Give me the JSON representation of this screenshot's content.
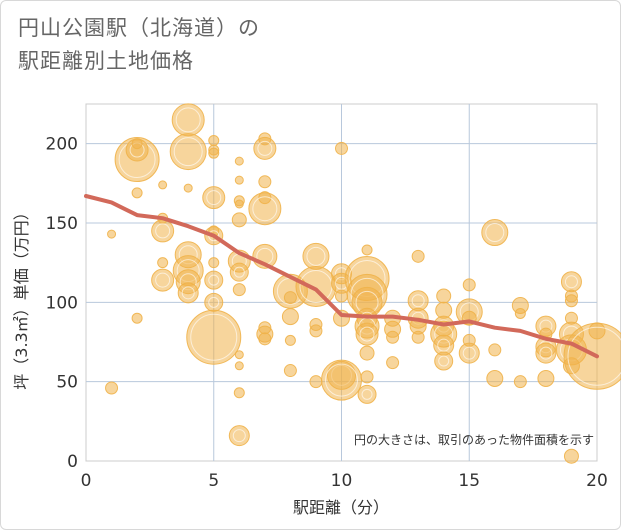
{
  "title_lines": [
    "円山公園駅（北海道）の",
    "駅距離別土地価格"
  ],
  "chart_data": {
    "type": "scatter",
    "title": "円山公園駅（北海道）の駅距離別土地価格",
    "xlabel": "駅距離（分）",
    "ylabel": "坪（3.3㎡）単価（万円）",
    "xlim": [
      0,
      20
    ],
    "ylim": [
      0,
      225
    ],
    "xticks": [
      0,
      5,
      10,
      15,
      20
    ],
    "yticks": [
      0,
      50,
      100,
      150,
      200
    ],
    "grid": true,
    "note": "円の大きさは、取引のあった物件面積を示す",
    "colors": {
      "bubble": "#f0b24a",
      "trend": "#d2695a"
    },
    "points": [
      [
        1,
        46,
        6
      ],
      [
        1,
        143,
        4
      ],
      [
        2,
        190,
        22
      ],
      [
        2,
        196,
        11
      ],
      [
        2,
        200,
        5
      ],
      [
        2,
        169,
        5
      ],
      [
        2,
        90,
        5
      ],
      [
        3,
        174,
        4
      ],
      [
        3,
        153,
        5
      ],
      [
        3,
        145,
        11
      ],
      [
        3,
        125,
        5
      ],
      [
        3,
        114,
        11
      ],
      [
        4,
        215,
        16
      ],
      [
        4,
        195,
        18
      ],
      [
        4,
        172,
        4
      ],
      [
        4,
        130,
        13
      ],
      [
        4,
        120,
        15
      ],
      [
        4,
        113,
        12
      ],
      [
        4,
        106,
        10
      ],
      [
        5,
        202,
        5
      ],
      [
        5,
        196,
        5
      ],
      [
        5,
        194,
        5
      ],
      [
        5,
        166,
        11
      ],
      [
        5,
        145,
        5
      ],
      [
        5,
        142,
        9
      ],
      [
        5,
        125,
        5
      ],
      [
        5,
        114,
        9
      ],
      [
        5,
        100,
        9
      ],
      [
        5,
        78,
        27
      ],
      [
        6,
        189,
        4
      ],
      [
        6,
        177,
        4
      ],
      [
        6,
        164,
        5
      ],
      [
        6,
        162,
        4
      ],
      [
        6,
        152,
        7
      ],
      [
        6,
        126,
        11
      ],
      [
        6,
        119,
        9
      ],
      [
        6,
        108,
        6
      ],
      [
        6,
        67,
        4
      ],
      [
        6,
        60,
        4
      ],
      [
        6,
        43,
        5
      ],
      [
        6,
        16,
        10
      ],
      [
        7,
        203,
        6
      ],
      [
        7,
        197,
        11
      ],
      [
        7,
        176,
        6
      ],
      [
        7,
        166,
        6
      ],
      [
        7,
        159,
        16
      ],
      [
        7,
        129,
        12
      ],
      [
        7,
        84,
        6
      ],
      [
        7,
        80,
        8
      ],
      [
        7,
        77,
        6
      ],
      [
        8,
        107,
        17
      ],
      [
        8,
        103,
        6
      ],
      [
        8,
        91,
        8
      ],
      [
        8,
        76,
        5
      ],
      [
        8,
        57,
        6
      ],
      [
        9,
        129,
        13
      ],
      [
        9,
        110,
        20
      ],
      [
        9,
        86,
        6
      ],
      [
        9,
        82,
        6
      ],
      [
        9,
        50,
        6
      ],
      [
        10,
        197,
        6
      ],
      [
        10,
        118,
        10
      ],
      [
        10,
        112,
        10
      ],
      [
        10,
        104,
        6
      ],
      [
        10,
        90,
        8
      ],
      [
        10,
        54,
        14
      ],
      [
        10,
        51,
        20
      ],
      [
        11,
        133,
        5
      ],
      [
        11,
        115,
        22
      ],
      [
        11,
        105,
        20
      ],
      [
        11,
        100,
        15
      ],
      [
        11,
        90,
        10
      ],
      [
        11,
        85,
        12
      ],
      [
        11,
        80,
        11
      ],
      [
        11,
        68,
        7
      ],
      [
        11,
        53,
        6
      ],
      [
        11,
        42,
        9
      ],
      [
        12,
        90,
        8
      ],
      [
        12,
        83,
        8
      ],
      [
        12,
        78,
        6
      ],
      [
        12,
        62,
        6
      ],
      [
        13,
        129,
        6
      ],
      [
        13,
        101,
        10
      ],
      [
        13,
        90,
        10
      ],
      [
        13,
        85,
        8
      ],
      [
        13,
        78,
        6
      ],
      [
        14,
        104,
        7
      ],
      [
        14,
        95,
        8
      ],
      [
        14,
        85,
        10
      ],
      [
        14,
        80,
        13
      ],
      [
        14,
        73,
        10
      ],
      [
        14,
        63,
        9
      ],
      [
        15,
        111,
        6
      ],
      [
        15,
        94,
        13
      ],
      [
        15,
        90,
        7
      ],
      [
        15,
        76,
        6
      ],
      [
        15,
        68,
        10
      ],
      [
        16,
        144,
        13
      ],
      [
        16,
        70,
        6
      ],
      [
        16,
        52,
        8
      ],
      [
        17,
        98,
        8
      ],
      [
        17,
        93,
        5
      ],
      [
        17,
        50,
        6
      ],
      [
        18,
        85,
        10
      ],
      [
        18,
        80,
        6
      ],
      [
        18,
        72,
        10
      ],
      [
        18,
        68,
        10
      ],
      [
        18,
        52,
        8
      ],
      [
        19,
        113,
        10
      ],
      [
        19,
        104,
        6
      ],
      [
        19,
        101,
        6
      ],
      [
        19,
        90,
        6
      ],
      [
        19,
        80,
        12
      ],
      [
        19,
        70,
        15
      ],
      [
        19,
        60,
        8
      ],
      [
        19,
        3,
        7
      ],
      [
        20,
        82,
        8
      ],
      [
        20,
        66,
        33
      ]
    ],
    "trend": [
      [
        0,
        167
      ],
      [
        1,
        163
      ],
      [
        2,
        155
      ],
      [
        3,
        153
      ],
      [
        4,
        148
      ],
      [
        5,
        142
      ],
      [
        6,
        131
      ],
      [
        7,
        124
      ],
      [
        8,
        116
      ],
      [
        9,
        108
      ],
      [
        10,
        92
      ],
      [
        11,
        91
      ],
      [
        12,
        91
      ],
      [
        13,
        89
      ],
      [
        14,
        86
      ],
      [
        15,
        88
      ],
      [
        16,
        84
      ],
      [
        17,
        82
      ],
      [
        18,
        77
      ],
      [
        19,
        74
      ],
      [
        20,
        66
      ]
    ]
  }
}
